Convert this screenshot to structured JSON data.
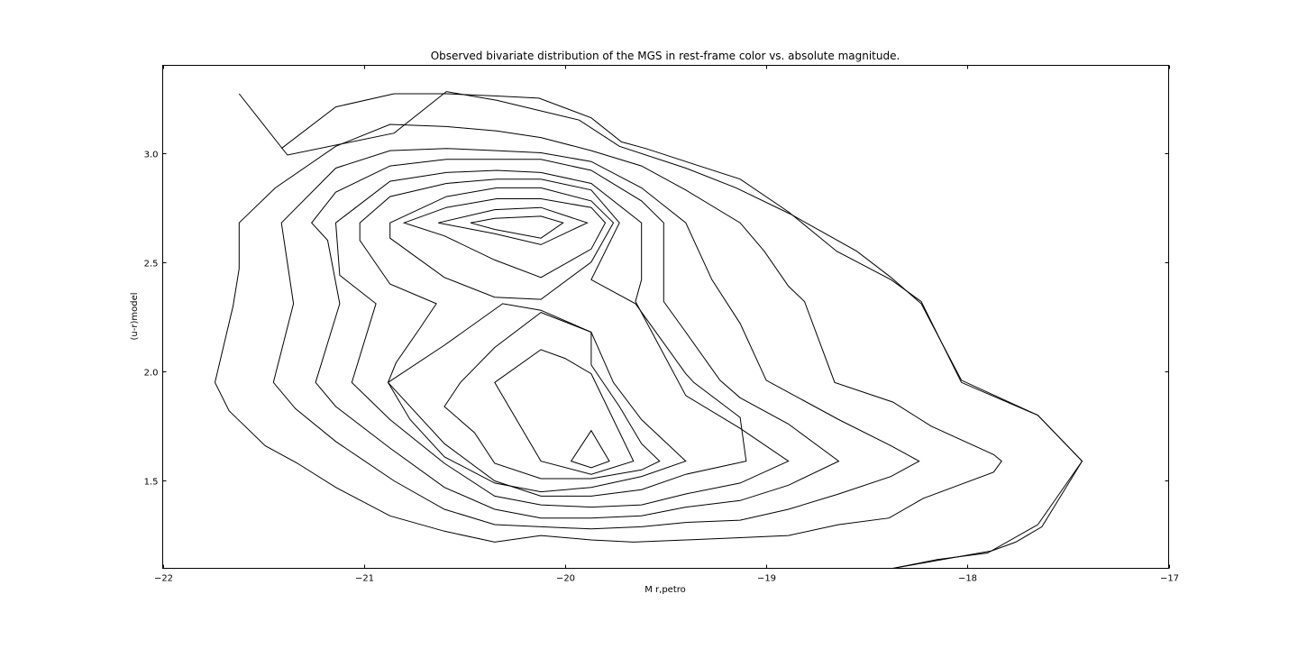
{
  "chart_data": {
    "type": "contour",
    "title": "Observed bivariate distribution of the MGS in rest-frame color vs. absolute magnitude.",
    "xlabel": "M r,petro",
    "ylabel": "(u-r)model",
    "xlim": [
      -22,
      -17
    ],
    "ylim": [
      1.1,
      3.4
    ],
    "xticks": [
      -22,
      -21,
      -20,
      -19,
      -18,
      -17
    ],
    "xtick_labels": [
      "−22",
      "−21",
      "−20",
      "−19",
      "−18",
      "−17"
    ],
    "yticks": [
      1.5,
      2.0,
      2.5,
      3.0
    ],
    "ytick_labels": [
      "1.5",
      "2.0",
      "2.5",
      "3.0"
    ],
    "grid": false,
    "line_color": "#000000",
    "contours": [
      {
        "level": 1,
        "closed": false,
        "points": [
          [
            -21.62,
            3.27
          ],
          [
            -21.38,
            2.99
          ],
          [
            -20.85,
            3.09
          ],
          [
            -20.59,
            3.28
          ],
          [
            -20.34,
            3.24
          ],
          [
            -19.93,
            3.15
          ],
          [
            -19.73,
            3.03
          ],
          [
            -19.4,
            2.93
          ],
          [
            -19.15,
            2.84
          ],
          [
            -18.88,
            2.72
          ],
          [
            -18.55,
            2.55
          ],
          [
            -18.38,
            2.43
          ],
          [
            -18.23,
            2.31
          ],
          [
            -18.03,
            1.96
          ],
          [
            -17.65,
            1.8
          ],
          [
            -17.43,
            1.59
          ],
          [
            -17.65,
            1.3
          ],
          [
            -17.9,
            1.17
          ],
          [
            -18.15,
            1.14
          ],
          [
            -18.37,
            1.1
          ]
        ]
      },
      {
        "level": 2,
        "closed": false,
        "points": [
          [
            -21.41,
            3.02
          ],
          [
            -21.14,
            3.21
          ],
          [
            -20.85,
            3.27
          ],
          [
            -20.59,
            3.27
          ],
          [
            -20.34,
            3.26
          ],
          [
            -20.13,
            3.25
          ],
          [
            -19.87,
            3.16
          ],
          [
            -19.72,
            3.05
          ],
          [
            -19.6,
            3.02
          ],
          [
            -19.4,
            2.96
          ],
          [
            -19.13,
            2.88
          ],
          [
            -18.89,
            2.73
          ],
          [
            -18.65,
            2.55
          ],
          [
            -18.38,
            2.42
          ],
          [
            -18.23,
            2.32
          ],
          [
            -18.03,
            1.95
          ],
          [
            -17.65,
            1.8
          ],
          [
            -17.43,
            1.59
          ],
          [
            -17.63,
            1.29
          ],
          [
            -17.76,
            1.22
          ],
          [
            -17.88,
            1.18
          ],
          [
            -18.37,
            1.1
          ]
        ]
      },
      {
        "level": 3,
        "closed": true,
        "points": [
          [
            -21.62,
            2.68
          ],
          [
            -21.44,
            2.84
          ],
          [
            -21.14,
            3.03
          ],
          [
            -20.87,
            3.13
          ],
          [
            -20.59,
            3.12
          ],
          [
            -20.34,
            3.1
          ],
          [
            -20.12,
            3.07
          ],
          [
            -19.87,
            3.01
          ],
          [
            -19.62,
            2.94
          ],
          [
            -19.4,
            2.83
          ],
          [
            -19.13,
            2.68
          ],
          [
            -19.01,
            2.55
          ],
          [
            -18.89,
            2.39
          ],
          [
            -18.81,
            2.32
          ],
          [
            -18.66,
            1.95
          ],
          [
            -18.37,
            1.86
          ],
          [
            -18.18,
            1.75
          ],
          [
            -17.87,
            1.62
          ],
          [
            -17.83,
            1.59
          ],
          [
            -17.87,
            1.54
          ],
          [
            -18.22,
            1.42
          ],
          [
            -18.39,
            1.33
          ],
          [
            -18.64,
            1.3
          ],
          [
            -18.89,
            1.25
          ],
          [
            -19.13,
            1.24
          ],
          [
            -19.4,
            1.23
          ],
          [
            -19.66,
            1.22
          ],
          [
            -19.87,
            1.23
          ],
          [
            -20.12,
            1.25
          ],
          [
            -20.35,
            1.22
          ],
          [
            -20.6,
            1.27
          ],
          [
            -20.87,
            1.34
          ],
          [
            -21.14,
            1.47
          ],
          [
            -21.33,
            1.58
          ],
          [
            -21.49,
            1.66
          ],
          [
            -21.67,
            1.82
          ],
          [
            -21.74,
            1.95
          ],
          [
            -21.65,
            2.3
          ],
          [
            -21.62,
            2.47
          ]
        ]
      },
      {
        "level": 4,
        "closed": true,
        "points": [
          [
            -21.41,
            2.68
          ],
          [
            -21.14,
            2.93
          ],
          [
            -20.87,
            3.01
          ],
          [
            -20.59,
            3.02
          ],
          [
            -20.34,
            3.01
          ],
          [
            -20.12,
            3.0
          ],
          [
            -19.87,
            2.96
          ],
          [
            -19.62,
            2.84
          ],
          [
            -19.4,
            2.68
          ],
          [
            -19.27,
            2.42
          ],
          [
            -19.13,
            2.22
          ],
          [
            -19.0,
            1.96
          ],
          [
            -18.64,
            1.78
          ],
          [
            -18.38,
            1.66
          ],
          [
            -18.24,
            1.59
          ],
          [
            -18.38,
            1.52
          ],
          [
            -18.64,
            1.44
          ],
          [
            -18.89,
            1.37
          ],
          [
            -19.13,
            1.32
          ],
          [
            -19.4,
            1.31
          ],
          [
            -19.62,
            1.29
          ],
          [
            -19.87,
            1.28
          ],
          [
            -20.12,
            1.29
          ],
          [
            -20.35,
            1.3
          ],
          [
            -20.6,
            1.37
          ],
          [
            -20.85,
            1.5
          ],
          [
            -21.14,
            1.68
          ],
          [
            -21.34,
            1.83
          ],
          [
            -21.45,
            1.95
          ],
          [
            -21.35,
            2.31
          ]
        ]
      },
      {
        "level": 5,
        "closed": true,
        "points": [
          [
            -21.26,
            2.68
          ],
          [
            -21.14,
            2.82
          ],
          [
            -20.87,
            2.94
          ],
          [
            -20.59,
            2.97
          ],
          [
            -20.34,
            2.97
          ],
          [
            -20.12,
            2.97
          ],
          [
            -19.87,
            2.92
          ],
          [
            -19.62,
            2.78
          ],
          [
            -19.51,
            2.68
          ],
          [
            -19.51,
            2.32
          ],
          [
            -19.4,
            2.18
          ],
          [
            -19.23,
            1.96
          ],
          [
            -19.13,
            1.88
          ],
          [
            -18.89,
            1.76
          ],
          [
            -18.64,
            1.59
          ],
          [
            -18.89,
            1.48
          ],
          [
            -19.13,
            1.41
          ],
          [
            -19.4,
            1.38
          ],
          [
            -19.62,
            1.34
          ],
          [
            -19.87,
            1.33
          ],
          [
            -20.12,
            1.33
          ],
          [
            -20.35,
            1.37
          ],
          [
            -20.6,
            1.47
          ],
          [
            -20.87,
            1.65
          ],
          [
            -21.14,
            1.84
          ],
          [
            -21.24,
            1.95
          ],
          [
            -21.12,
            2.31
          ],
          [
            -21.18,
            2.6
          ]
        ]
      },
      {
        "level": 6,
        "closed": true,
        "points": [
          [
            -21.14,
            2.68
          ],
          [
            -20.87,
            2.87
          ],
          [
            -20.59,
            2.91
          ],
          [
            -20.34,
            2.92
          ],
          [
            -20.12,
            2.91
          ],
          [
            -19.87,
            2.86
          ],
          [
            -19.62,
            2.68
          ],
          [
            -19.62,
            2.42
          ],
          [
            -19.65,
            2.32
          ],
          [
            -19.4,
            1.89
          ],
          [
            -19.13,
            1.74
          ],
          [
            -18.89,
            1.59
          ],
          [
            -19.13,
            1.49
          ],
          [
            -19.4,
            1.44
          ],
          [
            -19.62,
            1.39
          ],
          [
            -19.87,
            1.38
          ],
          [
            -20.12,
            1.39
          ],
          [
            -20.35,
            1.43
          ],
          [
            -20.6,
            1.58
          ],
          [
            -20.87,
            1.78
          ],
          [
            -21.06,
            1.95
          ],
          [
            -20.94,
            2.31
          ],
          [
            -21.12,
            2.44
          ]
        ]
      },
      {
        "level": 7,
        "closed": true,
        "points": [
          [
            -21.02,
            2.68
          ],
          [
            -20.87,
            2.8
          ],
          [
            -20.59,
            2.86
          ],
          [
            -20.34,
            2.88
          ],
          [
            -20.12,
            2.88
          ],
          [
            -19.87,
            2.83
          ],
          [
            -19.73,
            2.68
          ],
          [
            -19.87,
            2.42
          ],
          [
            -19.65,
            2.31
          ],
          [
            -19.4,
            1.99
          ],
          [
            -19.36,
            1.95
          ],
          [
            -19.13,
            1.79
          ],
          [
            -19.1,
            1.59
          ],
          [
            -19.4,
            1.53
          ],
          [
            -19.62,
            1.46
          ],
          [
            -19.87,
            1.43
          ],
          [
            -20.12,
            1.43
          ],
          [
            -20.35,
            1.5
          ],
          [
            -20.6,
            1.67
          ],
          [
            -20.88,
            1.95
          ],
          [
            -20.84,
            2.04
          ],
          [
            -20.72,
            2.2
          ],
          [
            -20.64,
            2.31
          ],
          [
            -20.87,
            2.4
          ],
          [
            -21.02,
            2.6
          ]
        ]
      },
      {
        "level": 8,
        "closed": true,
        "points": [
          [
            -20.87,
            2.68
          ],
          [
            -20.59,
            2.8
          ],
          [
            -20.34,
            2.84
          ],
          [
            -20.12,
            2.84
          ],
          [
            -19.87,
            2.78
          ],
          [
            -19.76,
            2.68
          ],
          [
            -19.87,
            2.5
          ],
          [
            -20.12,
            2.33
          ],
          [
            -20.35,
            2.34
          ],
          [
            -20.6,
            2.43
          ],
          [
            -20.87,
            2.61
          ]
        ]
      },
      {
        "level": 9,
        "closed": true,
        "points": [
          [
            -20.8,
            2.68
          ],
          [
            -20.59,
            2.75
          ],
          [
            -20.34,
            2.79
          ],
          [
            -20.12,
            2.79
          ],
          [
            -19.87,
            2.75
          ],
          [
            -19.8,
            2.68
          ],
          [
            -19.87,
            2.56
          ],
          [
            -20.12,
            2.43
          ],
          [
            -20.35,
            2.51
          ],
          [
            -20.6,
            2.62
          ]
        ]
      },
      {
        "level": 10,
        "closed": true,
        "points": [
          [
            -20.63,
            2.68
          ],
          [
            -20.35,
            2.74
          ],
          [
            -20.12,
            2.75
          ],
          [
            -19.89,
            2.68
          ],
          [
            -20.12,
            2.58
          ],
          [
            -20.35,
            2.63
          ]
        ]
      },
      {
        "level": 11,
        "closed": true,
        "points": [
          [
            -20.47,
            2.68
          ],
          [
            -20.35,
            2.7
          ],
          [
            -20.12,
            2.71
          ],
          [
            -20.01,
            2.68
          ],
          [
            -20.12,
            2.61
          ],
          [
            -20.35,
            2.65
          ]
        ]
      },
      {
        "level": 12,
        "closed": true,
        "points": [
          [
            -20.31,
            2.31
          ],
          [
            -20.6,
            2.12
          ],
          [
            -20.88,
            1.95
          ],
          [
            -20.77,
            1.78
          ],
          [
            -20.6,
            1.61
          ],
          [
            -20.35,
            1.49
          ],
          [
            -20.12,
            1.45
          ],
          [
            -19.87,
            1.47
          ],
          [
            -19.62,
            1.52
          ],
          [
            -19.4,
            1.59
          ],
          [
            -19.62,
            1.78
          ],
          [
            -19.76,
            1.95
          ],
          [
            -19.87,
            2.18
          ],
          [
            -20.12,
            2.28
          ]
        ]
      },
      {
        "level": 13,
        "closed": true,
        "points": [
          [
            -20.12,
            2.27
          ],
          [
            -20.35,
            2.11
          ],
          [
            -20.52,
            1.95
          ],
          [
            -20.6,
            1.84
          ],
          [
            -20.45,
            1.72
          ],
          [
            -20.35,
            1.58
          ],
          [
            -20.12,
            1.51
          ],
          [
            -19.87,
            1.51
          ],
          [
            -19.62,
            1.55
          ],
          [
            -19.53,
            1.59
          ],
          [
            -19.62,
            1.67
          ],
          [
            -19.73,
            1.84
          ],
          [
            -19.87,
            2.03
          ],
          [
            -19.87,
            2.18
          ]
        ]
      },
      {
        "level": 14,
        "closed": true,
        "points": [
          [
            -20.12,
            2.1
          ],
          [
            -20.35,
            1.95
          ],
          [
            -20.12,
            1.59
          ],
          [
            -19.87,
            1.53
          ],
          [
            -19.66,
            1.59
          ],
          [
            -19.87,
            1.99
          ],
          [
            -20.0,
            2.06
          ]
        ]
      },
      {
        "level": 15,
        "closed": true,
        "points": [
          [
            -19.87,
            1.73
          ],
          [
            -19.97,
            1.59
          ],
          [
            -19.87,
            1.56
          ],
          [
            -19.78,
            1.59
          ]
        ]
      }
    ]
  }
}
